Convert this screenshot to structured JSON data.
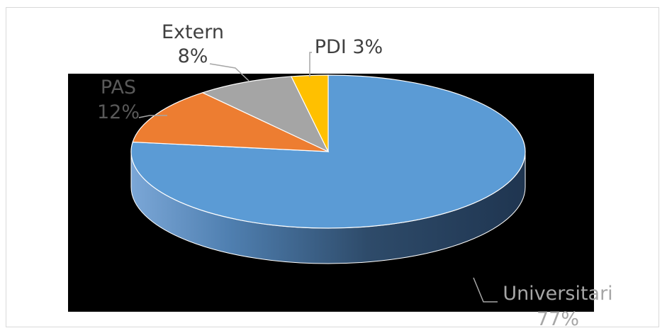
{
  "chart_data": {
    "type": "pie",
    "variant": "3d",
    "title": "",
    "plot_background": "#000000",
    "chart_background": "#ffffff",
    "legend": "none",
    "slices": [
      {
        "label": "Universitari",
        "value": 77,
        "value_text": "77%",
        "color": "#5b9bd5"
      },
      {
        "label": "PAS",
        "value": 12,
        "value_text": "12%",
        "color": "#ed7d31"
      },
      {
        "label": "Extern",
        "value": 8,
        "value_text": "8%",
        "color": "#a5a5a5"
      },
      {
        "label": "PDI",
        "value": 3,
        "value_text": "3%",
        "color": "#ffc000"
      }
    ]
  }
}
